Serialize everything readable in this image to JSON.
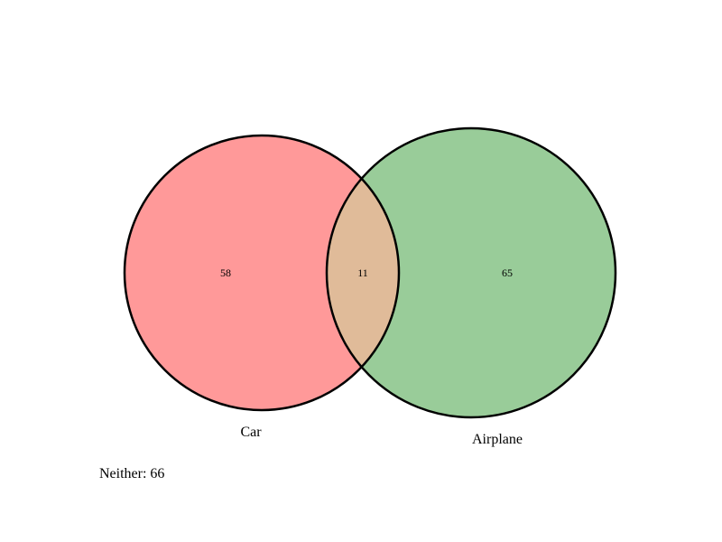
{
  "diagram": {
    "type": "venn2",
    "sets": [
      {
        "name": "Car",
        "only_count": "58",
        "color": "#ff9999"
      },
      {
        "name": "Airplane",
        "only_count": "65",
        "color": "#99cc99"
      }
    ],
    "intersection": {
      "count": "11",
      "color": "#e0bb99"
    },
    "neither": {
      "text": "Neither: 66"
    },
    "outline_color": "#000000"
  }
}
